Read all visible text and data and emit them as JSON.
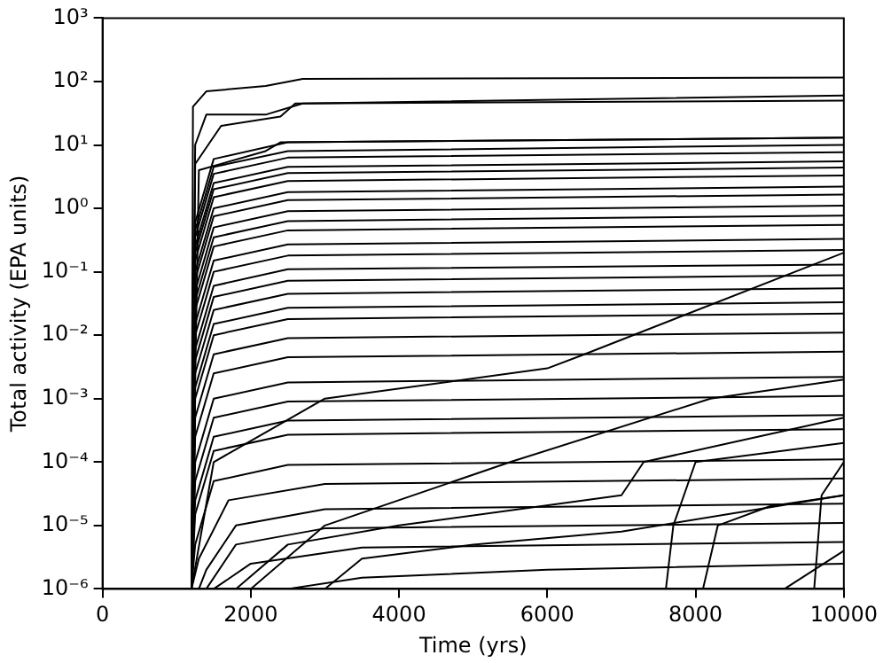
{
  "chart_data": {
    "type": "line",
    "xlabel": "Time (yrs)",
    "ylabel": "Total activity (EPA units)",
    "log": "y",
    "grid": false,
    "legend": false,
    "xlim": [
      0,
      10000
    ],
    "xticks": [
      0,
      2000,
      4000,
      6000,
      8000,
      10000
    ],
    "ylim": [
      1e-06,
      1000
    ],
    "yticks": [
      {
        "value": 1e-06,
        "label": "10⁻⁶"
      },
      {
        "value": 1e-05,
        "label": "10⁻⁵"
      },
      {
        "value": 0.0001,
        "label": "10⁻⁴"
      },
      {
        "value": 0.001,
        "label": "10⁻³"
      },
      {
        "value": 0.01,
        "label": "10⁻²"
      },
      {
        "value": 0.1,
        "label": "10⁻¹"
      },
      {
        "value": 1,
        "label": "10⁰"
      },
      {
        "value": 10,
        "label": "10¹"
      },
      {
        "value": 100,
        "label": "10²"
      },
      {
        "value": 1000,
        "label": "10³"
      }
    ],
    "series": [
      {
        "color": "#000000",
        "x": [
          1200,
          1220,
          1400,
          2200,
          2700,
          10000
        ],
        "values": [
          1e-06,
          40,
          70,
          85,
          110,
          115
        ]
      },
      {
        "color": "#000000",
        "x": [
          1200,
          1250,
          1400,
          2200,
          2700,
          10000
        ],
        "values": [
          1e-06,
          10,
          30,
          30,
          45,
          60
        ]
      },
      {
        "color": "#000000",
        "x": [
          1200,
          1250,
          1600,
          2400,
          2600,
          10000
        ],
        "values": [
          1e-06,
          5,
          20,
          28,
          45,
          50
        ]
      },
      {
        "color": "#000000",
        "x": [
          1200,
          1300,
          2200,
          2400,
          10000
        ],
        "values": [
          1e-06,
          4,
          8,
          11,
          13
        ]
      },
      {
        "color": "#000000",
        "x": [
          1200,
          1250,
          1500,
          2500,
          10000
        ],
        "values": [
          1e-06,
          0.6,
          6,
          11,
          13
        ]
      },
      {
        "color": "#000000",
        "x": [
          1200,
          1250,
          1500,
          2500,
          10000
        ],
        "values": [
          1e-06,
          0.45,
          4.5,
          8,
          10
        ]
      },
      {
        "color": "#000000",
        "x": [
          1200,
          1250,
          1500,
          2500,
          10000
        ],
        "values": [
          1e-06,
          0.35,
          3.5,
          6.3,
          7.7
        ]
      },
      {
        "color": "#000000",
        "x": [
          1200,
          1250,
          1500,
          2500,
          10000
        ],
        "values": [
          1e-06,
          0.25,
          2.5,
          4.5,
          5.5
        ]
      },
      {
        "color": "#000000",
        "x": [
          1200,
          1250,
          1500,
          2500,
          10000
        ],
        "values": [
          1e-06,
          0.2,
          2,
          3.6,
          4.4
        ]
      },
      {
        "color": "#000000",
        "x": [
          1200,
          1250,
          1500,
          2500,
          10000
        ],
        "values": [
          1e-06,
          0.15,
          1.5,
          2.7,
          3.3
        ]
      },
      {
        "color": "#000000",
        "x": [
          1200,
          1250,
          1500,
          2500,
          10000
        ],
        "values": [
          1e-06,
          0.1,
          1,
          1.8,
          2.2
        ]
      },
      {
        "color": "#000000",
        "x": [
          1200,
          1250,
          1500,
          2500,
          10000
        ],
        "values": [
          1e-06,
          0.075,
          0.75,
          1.35,
          1.65
        ]
      },
      {
        "color": "#000000",
        "x": [
          1200,
          1250,
          1500,
          2500,
          10000
        ],
        "values": [
          1e-06,
          0.05,
          0.5,
          0.9,
          1.1
        ]
      },
      {
        "color": "#000000",
        "x": [
          1200,
          1250,
          1500,
          2500,
          10000
        ],
        "values": [
          1e-06,
          0.035,
          0.35,
          0.63,
          0.77
        ]
      },
      {
        "color": "#000000",
        "x": [
          1200,
          1250,
          1500,
          2500,
          10000
        ],
        "values": [
          1e-06,
          0.025,
          0.25,
          0.45,
          0.55
        ]
      },
      {
        "color": "#000000",
        "x": [
          1200,
          1250,
          1500,
          2500,
          10000
        ],
        "values": [
          1e-06,
          0.015,
          0.15,
          0.27,
          0.33
        ]
      },
      {
        "color": "#000000",
        "x": [
          1200,
          1250,
          1500,
          2500,
          10000
        ],
        "values": [
          1e-06,
          0.01,
          0.1,
          0.18,
          0.22
        ]
      },
      {
        "color": "#000000",
        "x": [
          1200,
          1250,
          1500,
          2500,
          10000
        ],
        "values": [
          1e-06,
          0.006,
          0.06,
          0.11,
          0.13
        ]
      },
      {
        "color": "#000000",
        "x": [
          1200,
          1250,
          1500,
          2500,
          10000
        ],
        "values": [
          1e-06,
          0.004,
          0.04,
          0.072,
          0.088
        ]
      },
      {
        "color": "#000000",
        "x": [
          1200,
          1250,
          1500,
          2500,
          10000
        ],
        "values": [
          1e-06,
          0.0025,
          0.025,
          0.045,
          0.055
        ]
      },
      {
        "color": "#000000",
        "x": [
          1200,
          1250,
          1500,
          2500,
          10000
        ],
        "values": [
          1e-06,
          0.0015,
          0.015,
          0.027,
          0.033
        ]
      },
      {
        "color": "#000000",
        "x": [
          1200,
          1250,
          1500,
          2500,
          10000
        ],
        "values": [
          1e-06,
          0.001,
          0.01,
          0.018,
          0.022
        ]
      },
      {
        "color": "#000000",
        "x": [
          1200,
          1250,
          1500,
          2500,
          10000
        ],
        "values": [
          1e-06,
          0.0005,
          0.005,
          0.009,
          0.011
        ]
      },
      {
        "color": "#000000",
        "x": [
          1200,
          1250,
          1500,
          2500,
          10000
        ],
        "values": [
          1e-06,
          0.00025,
          0.0025,
          0.0045,
          0.0055
        ]
      },
      {
        "color": "#000000",
        "x": [
          1200,
          1250,
          1500,
          2500,
          10000
        ],
        "values": [
          1e-06,
          0.0001,
          0.001,
          0.0018,
          0.0022
        ]
      },
      {
        "color": "#000000",
        "x": [
          1200,
          1250,
          1500,
          2500,
          10000
        ],
        "values": [
          1e-06,
          5e-05,
          0.0005,
          0.0009,
          0.0011
        ]
      },
      {
        "color": "#000000",
        "x": [
          1200,
          1250,
          1500,
          2500,
          10000
        ],
        "values": [
          1e-06,
          2.5e-05,
          0.00025,
          0.00045,
          0.00055
        ]
      },
      {
        "color": "#000000",
        "x": [
          1200,
          1250,
          1500,
          2500,
          10000
        ],
        "values": [
          1e-06,
          1.5e-05,
          0.00015,
          0.00027,
          0.00033
        ]
      },
      {
        "color": "#000000",
        "x": [
          1200,
          1250,
          1500,
          2500,
          10000
        ],
        "values": [
          1e-06,
          5e-06,
          5e-05,
          9e-05,
          0.00011
        ]
      },
      {
        "color": "#000000",
        "x": [
          1200,
          1300,
          1700,
          3000,
          10000
        ],
        "values": [
          1e-06,
          3e-06,
          2.5e-05,
          4.5e-05,
          5.5e-05
        ]
      },
      {
        "color": "#000000",
        "x": [
          1300,
          1400,
          1800,
          3000,
          10000
        ],
        "values": [
          1e-06,
          2e-06,
          1e-05,
          1.8e-05,
          2.2e-05
        ]
      },
      {
        "color": "#000000",
        "x": [
          1400,
          1800,
          3000,
          10000
        ],
        "values": [
          1e-06,
          5e-06,
          9e-06,
          1.1e-05
        ]
      },
      {
        "color": "#000000",
        "x": [
          1500,
          2000,
          3500,
          10000
        ],
        "values": [
          1e-06,
          2.5e-06,
          4.5e-06,
          5.5e-06
        ]
      },
      {
        "color": "#000000",
        "x": [
          2500,
          3500,
          6000,
          10000
        ],
        "values": [
          1e-06,
          1.5e-06,
          2e-06,
          2.5e-06
        ]
      },
      {
        "color": "#000000",
        "x": [
          1200,
          1500,
          3000,
          6000,
          6500,
          10000
        ],
        "values": [
          1e-06,
          0.0001,
          0.001,
          0.003,
          0.005,
          0.2
        ]
      },
      {
        "color": "#000000",
        "x": [
          1800,
          2500,
          4000,
          7000,
          7300,
          10000
        ],
        "values": [
          1e-06,
          5e-06,
          1e-05,
          3e-05,
          0.0001,
          0.0005
        ]
      },
      {
        "color": "#000000",
        "x": [
          3000,
          3500,
          5000,
          7000,
          10000
        ],
        "values": [
          1e-06,
          3e-06,
          5e-06,
          8e-06,
          3e-05
        ]
      },
      {
        "color": "#000000",
        "x": [
          7600,
          7700,
          8000,
          10000
        ],
        "values": [
          1e-06,
          1e-05,
          0.0001,
          0.0002
        ]
      },
      {
        "color": "#000000",
        "x": [
          8100,
          8300,
          9000,
          10000
        ],
        "values": [
          1e-06,
          1e-05,
          2e-05,
          3e-05
        ]
      },
      {
        "color": "#000000",
        "x": [
          9200,
          9600,
          10000
        ],
        "values": [
          1e-06,
          2e-06,
          4e-06
        ]
      },
      {
        "color": "#000000",
        "x": [
          2000,
          3000,
          5500,
          8200,
          10000
        ],
        "values": [
          1e-06,
          1e-05,
          0.0001,
          0.001,
          0.002
        ]
      },
      {
        "color": "#000000",
        "x": [
          9600,
          9700,
          10000
        ],
        "values": [
          1e-06,
          3e-05,
          0.0001
        ]
      }
    ]
  }
}
